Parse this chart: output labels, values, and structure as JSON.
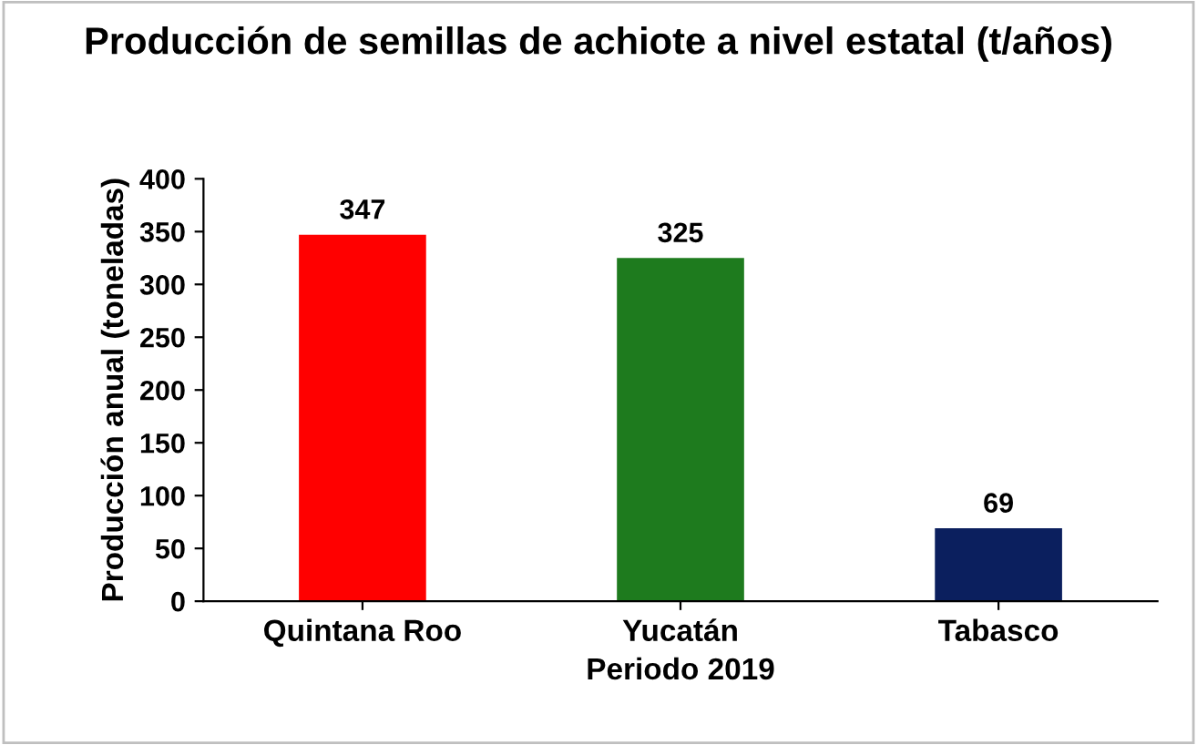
{
  "chart_data": {
    "type": "bar",
    "title": "Producción de semillas de achiote a nivel estatal (t/años)",
    "xlabel": "Periodo 2019",
    "ylabel": "Producción anual (toneladas)",
    "categories": [
      "Quintana Roo",
      "Yucatán",
      "Tabasco"
    ],
    "values": [
      347,
      325,
      69
    ],
    "colors": [
      "#ff0000",
      "#1e7b1e",
      "#0b1f5e"
    ],
    "ylim": [
      0,
      400
    ],
    "yticks": [
      0,
      50,
      100,
      150,
      200,
      250,
      300,
      350,
      400
    ],
    "data_labels": true,
    "grid": false
  }
}
